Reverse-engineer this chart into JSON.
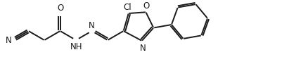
{
  "background": "#ffffff",
  "bond_color": "#1a1a1a",
  "bond_lw": 1.4,
  "text_color": "#1a1a1a",
  "font_size": 8.5,
  "figsize": [
    4.38,
    1.16
  ],
  "dpi": 100,
  "xlim": [
    0,
    438
  ],
  "ylim": [
    0,
    116
  ]
}
